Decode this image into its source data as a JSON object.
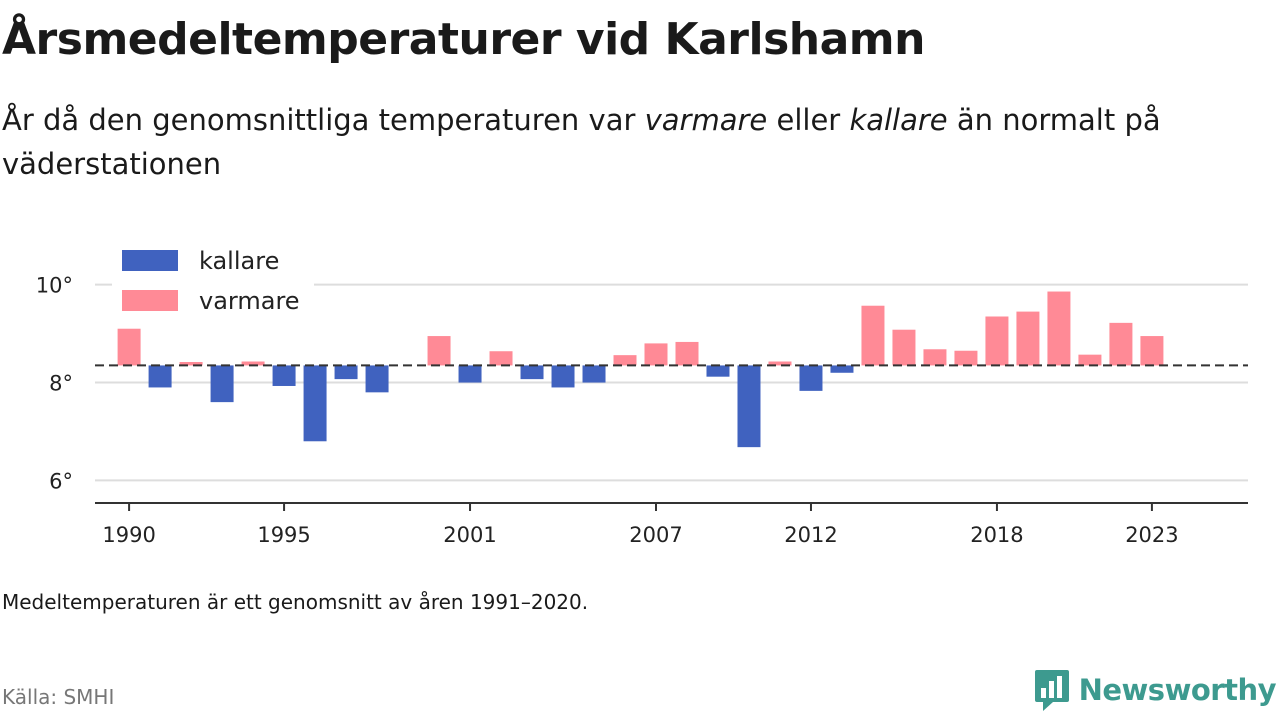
{
  "header": {
    "title": "Årsmedeltemperaturer vid Karlshamn",
    "subtitle_part1": "År då den genomsnittliga temperaturen var ",
    "subtitle_warm": "varmare",
    "subtitle_part2": " eller ",
    "subtitle_cold": "kallare",
    "subtitle_part3": " än normalt på väderstationen"
  },
  "footnote": "Medeltemperaturen är ett genomsnitt av åren 1991–2020.",
  "source": "Källa: SMHI",
  "brand": {
    "name": "Newsworthy",
    "logo_icon": "bar-chart-speech-bubble-icon",
    "color": "#3d9a8f"
  },
  "chart_data": {
    "type": "bar",
    "baseline": 8.35,
    "ylim": [
      5.6,
      10.3
    ],
    "yticks": [
      6,
      8,
      10
    ],
    "ytick_labels": [
      "6°",
      "8°",
      "10°"
    ],
    "xlim": [
      1988.9,
      2026.1
    ],
    "xticks": [
      1990,
      1995,
      2001,
      2007,
      2012,
      2018,
      2023
    ],
    "xtick_labels": [
      "1990",
      "1995",
      "2001",
      "2007",
      "2012",
      "2018",
      "2023"
    ],
    "legend": {
      "placement": "top-left",
      "entries": [
        {
          "key": "kallare",
          "label": "kallare"
        },
        {
          "key": "varmare",
          "label": "varmare"
        }
      ]
    },
    "colors": {
      "kallare": "#4062bf",
      "varmare": "#ff8a96",
      "baseline": "#333333",
      "grid": "#dddddd",
      "axis": "#333333"
    },
    "grid": true,
    "bars": [
      {
        "year": 1990,
        "value": 9.1
      },
      {
        "year": 1991,
        "value": 7.9
      },
      {
        "year": 1992,
        "value": 8.42
      },
      {
        "year": 1993,
        "value": 7.6
      },
      {
        "year": 1994,
        "value": 8.43
      },
      {
        "year": 1995,
        "value": 7.93
      },
      {
        "year": 1996,
        "value": 6.8
      },
      {
        "year": 1997,
        "value": 8.07
      },
      {
        "year": 1998,
        "value": 7.8
      },
      {
        "year": 2000,
        "value": 8.95
      },
      {
        "year": 2001,
        "value": 8.0
      },
      {
        "year": 2002,
        "value": 8.64
      },
      {
        "year": 2003,
        "value": 8.07
      },
      {
        "year": 2004,
        "value": 7.9
      },
      {
        "year": 2005,
        "value": 8.0
      },
      {
        "year": 2006,
        "value": 8.56
      },
      {
        "year": 2007,
        "value": 8.8
      },
      {
        "year": 2008,
        "value": 8.83
      },
      {
        "year": 2009,
        "value": 8.12
      },
      {
        "year": 2010,
        "value": 6.68
      },
      {
        "year": 2011,
        "value": 8.43
      },
      {
        "year": 2012,
        "value": 7.83
      },
      {
        "year": 2013,
        "value": 8.2
      },
      {
        "year": 2014,
        "value": 9.57
      },
      {
        "year": 2015,
        "value": 9.08
      },
      {
        "year": 2016,
        "value": 8.68
      },
      {
        "year": 2017,
        "value": 8.65
      },
      {
        "year": 2018,
        "value": 9.35
      },
      {
        "year": 2019,
        "value": 9.45
      },
      {
        "year": 2020,
        "value": 9.86
      },
      {
        "year": 2021,
        "value": 8.57
      },
      {
        "year": 2022,
        "value": 9.22
      },
      {
        "year": 2023,
        "value": 8.95
      }
    ]
  }
}
